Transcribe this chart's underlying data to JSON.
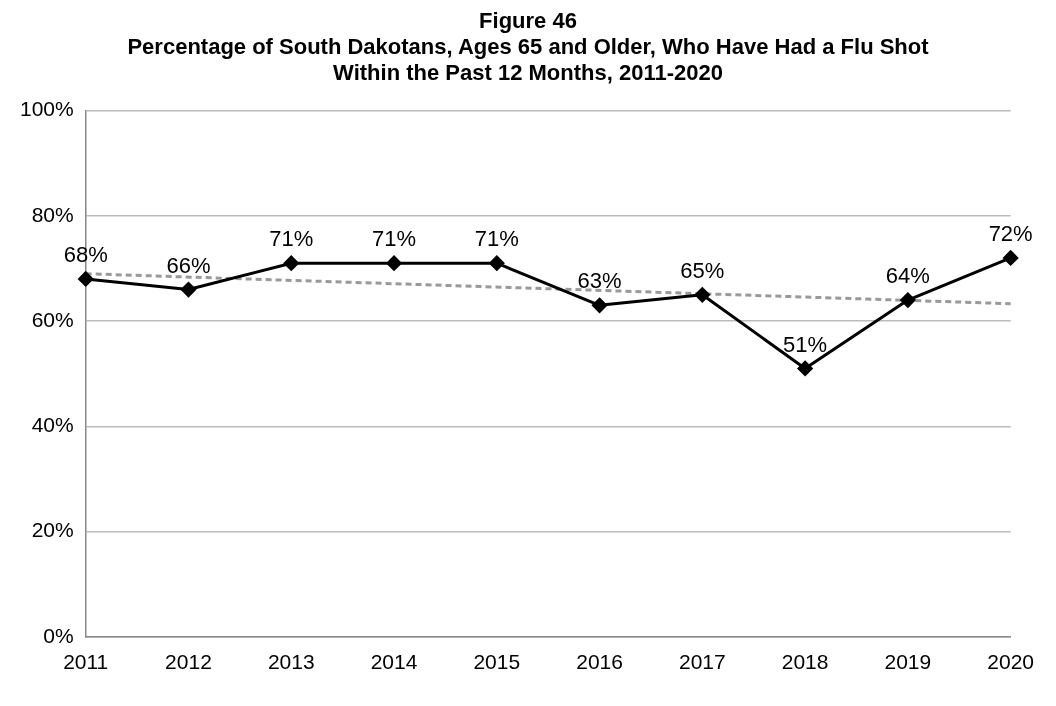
{
  "chart_data": {
    "type": "line",
    "title": "Figure 46",
    "subtitle": "Percentage of South Dakotans, Ages 65 and Older, Who Have Had a Flu Shot Within the Past 12 Months, 2011-2020",
    "categories": [
      "2011",
      "2012",
      "2013",
      "2014",
      "2015",
      "2016",
      "2017",
      "2018",
      "2019",
      "2020"
    ],
    "series": [
      {
        "color": "#000000",
        "values": [
          68,
          66,
          71,
          71,
          71,
          63,
          65,
          51,
          64,
          72
        ],
        "value_labels": [
          "68%",
          "66%",
          "71%",
          "71%",
          "71%",
          "63%",
          "65%",
          "51%",
          "64%",
          "72%"
        ],
        "marker": "diamond",
        "line_style": "solid"
      },
      {
        "type": "line",
        "color": "#999999",
        "values": [
          69,
          null,
          null,
          null,
          null,
          null,
          null,
          null,
          null,
          63.3
        ],
        "marker": "none",
        "line_style": "dashed"
      }
    ],
    "ylim": [
      0,
      100
    ],
    "yticks": [
      {
        "value": 0,
        "label": "0%"
      },
      {
        "value": 20,
        "label": "20%"
      },
      {
        "value": 40,
        "label": "40%"
      },
      {
        "value": 60,
        "label": "60%"
      },
      {
        "value": 80,
        "label": "80%"
      },
      {
        "value": 100,
        "label": "100%"
      }
    ],
    "grid": "y",
    "legend": false
  }
}
